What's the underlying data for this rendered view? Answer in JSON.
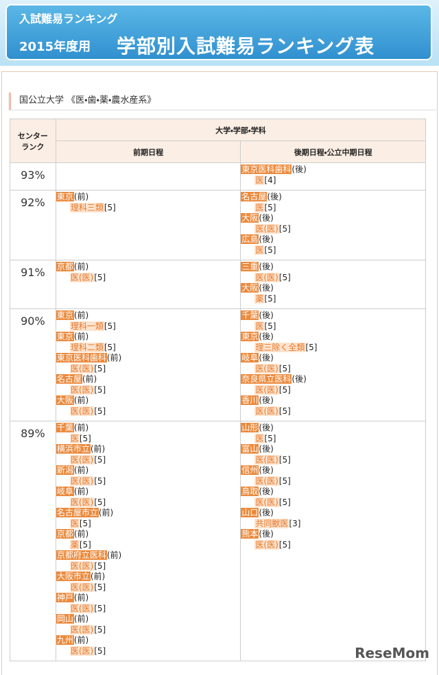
{
  "header": {
    "kicker": "入試難易ランキング",
    "year": "2015年度用",
    "title": "学部別入試難易ランキング表"
  },
  "section_title": "国公立大学 《医・歯・薬・農水産系》",
  "table": {
    "rank_header": [
      "センター",
      "ランク"
    ],
    "group_header": "大学・学部・学科",
    "columns": [
      "前期日程",
      "後期日程・公立中期日程"
    ],
    "rows": [
      {
        "rank": "93%",
        "front": [],
        "back": [
          {
            "university": "東京医科歯科",
            "term": "(後)",
            "faculty": "医",
            "level": "[4]"
          }
        ]
      },
      {
        "rank": "92%",
        "front": [
          {
            "university": "東京",
            "term": "(前)",
            "faculty": "理科三類",
            "level": "[5]"
          }
        ],
        "back": [
          {
            "university": "名古屋",
            "term": "(後)",
            "faculty": "医",
            "level": "[5]"
          },
          {
            "university": "大阪",
            "term": "(後)",
            "faculty": "医(医)",
            "level": "[5]"
          },
          {
            "university": "広島",
            "term": "(後)",
            "faculty": "医",
            "level": "[5]"
          }
        ]
      },
      {
        "rank": "91%",
        "front": [
          {
            "university": "京都",
            "term": "(前)",
            "faculty": "医(医)",
            "level": "[5]"
          }
        ],
        "back": [
          {
            "university": "三重",
            "term": "(後)",
            "faculty": "医(医)",
            "level": "[5]"
          },
          {
            "university": "大阪",
            "term": "(後)",
            "faculty": "薬",
            "level": "[5]"
          }
        ]
      },
      {
        "rank": "90%",
        "front": [
          {
            "university": "東京",
            "term": "(前)",
            "faculty": "理科一類",
            "level": "[5]"
          },
          {
            "university": "東京",
            "term": "(前)",
            "faculty": "理科二類",
            "level": "[5]"
          },
          {
            "university": "東京医科歯科",
            "term": "(前)",
            "faculty": "医(医)",
            "level": "[5]"
          },
          {
            "university": "名古屋",
            "term": "(前)",
            "faculty": "医(医)",
            "level": "[5]"
          },
          {
            "university": "大阪",
            "term": "(前)",
            "faculty": "医(医)",
            "level": "[5]"
          }
        ],
        "back": [
          {
            "university": "千葉",
            "term": "(後)",
            "faculty": "医",
            "level": "[5]"
          },
          {
            "university": "東京",
            "term": "(後)",
            "faculty": "理三除く全類",
            "level": "[5]"
          },
          {
            "university": "岐阜",
            "term": "(後)",
            "faculty": "医(医)",
            "level": "[5]"
          },
          {
            "university": "奈良県立医科",
            "term": "(後)",
            "faculty": "医(医)",
            "level": "[5]"
          },
          {
            "university": "香川",
            "term": "(後)",
            "faculty": "医(医)",
            "level": "[5]"
          }
        ]
      },
      {
        "rank": "89%",
        "front": [
          {
            "university": "千葉",
            "term": "(前)",
            "faculty": "医",
            "level": "[5]"
          },
          {
            "university": "横浜市立",
            "term": "(前)",
            "faculty": "医(医)",
            "level": "[5]"
          },
          {
            "university": "新潟",
            "term": "(前)",
            "faculty": "医(医)",
            "level": "[5]"
          },
          {
            "university": "岐阜",
            "term": "(前)",
            "faculty": "医(医)",
            "level": "[5]"
          },
          {
            "university": "名古屋市立",
            "term": "(前)",
            "faculty": "医",
            "level": "[5]"
          },
          {
            "university": "京都",
            "term": "(前)",
            "faculty": "薬",
            "level": "[5]"
          },
          {
            "university": "京都府立医科",
            "term": "(前)",
            "faculty": "医(医)",
            "level": "[5]"
          },
          {
            "university": "大阪市立",
            "term": "(前)",
            "faculty": "医(医)",
            "level": "[5]"
          },
          {
            "university": "神戸",
            "term": "(前)",
            "faculty": "医(医)",
            "level": "[5]"
          },
          {
            "university": "岡山",
            "term": "(前)",
            "faculty": "医(医)",
            "level": "[5]"
          },
          {
            "university": "九州",
            "term": "(前)",
            "faculty": "医(医)",
            "level": "[5]"
          }
        ],
        "back": [
          {
            "university": "山形",
            "term": "(後)",
            "faculty": "医",
            "level": "[5]"
          },
          {
            "university": "富山",
            "term": "(後)",
            "faculty": "医(医)",
            "level": "[5]"
          },
          {
            "university": "信州",
            "term": "(後)",
            "faculty": "医(医)",
            "level": "[5]"
          },
          {
            "university": "鳥取",
            "term": "(後)",
            "faculty": "医(医)",
            "level": "[5]"
          },
          {
            "university": "山口",
            "term": "(後)",
            "faculty": "共同獣医",
            "level": "[3]"
          },
          {
            "university": "熊本",
            "term": "(後)",
            "faculty": "医(医)",
            "level": "[5]"
          }
        ]
      }
    ]
  },
  "watermark": "ReseMom"
}
